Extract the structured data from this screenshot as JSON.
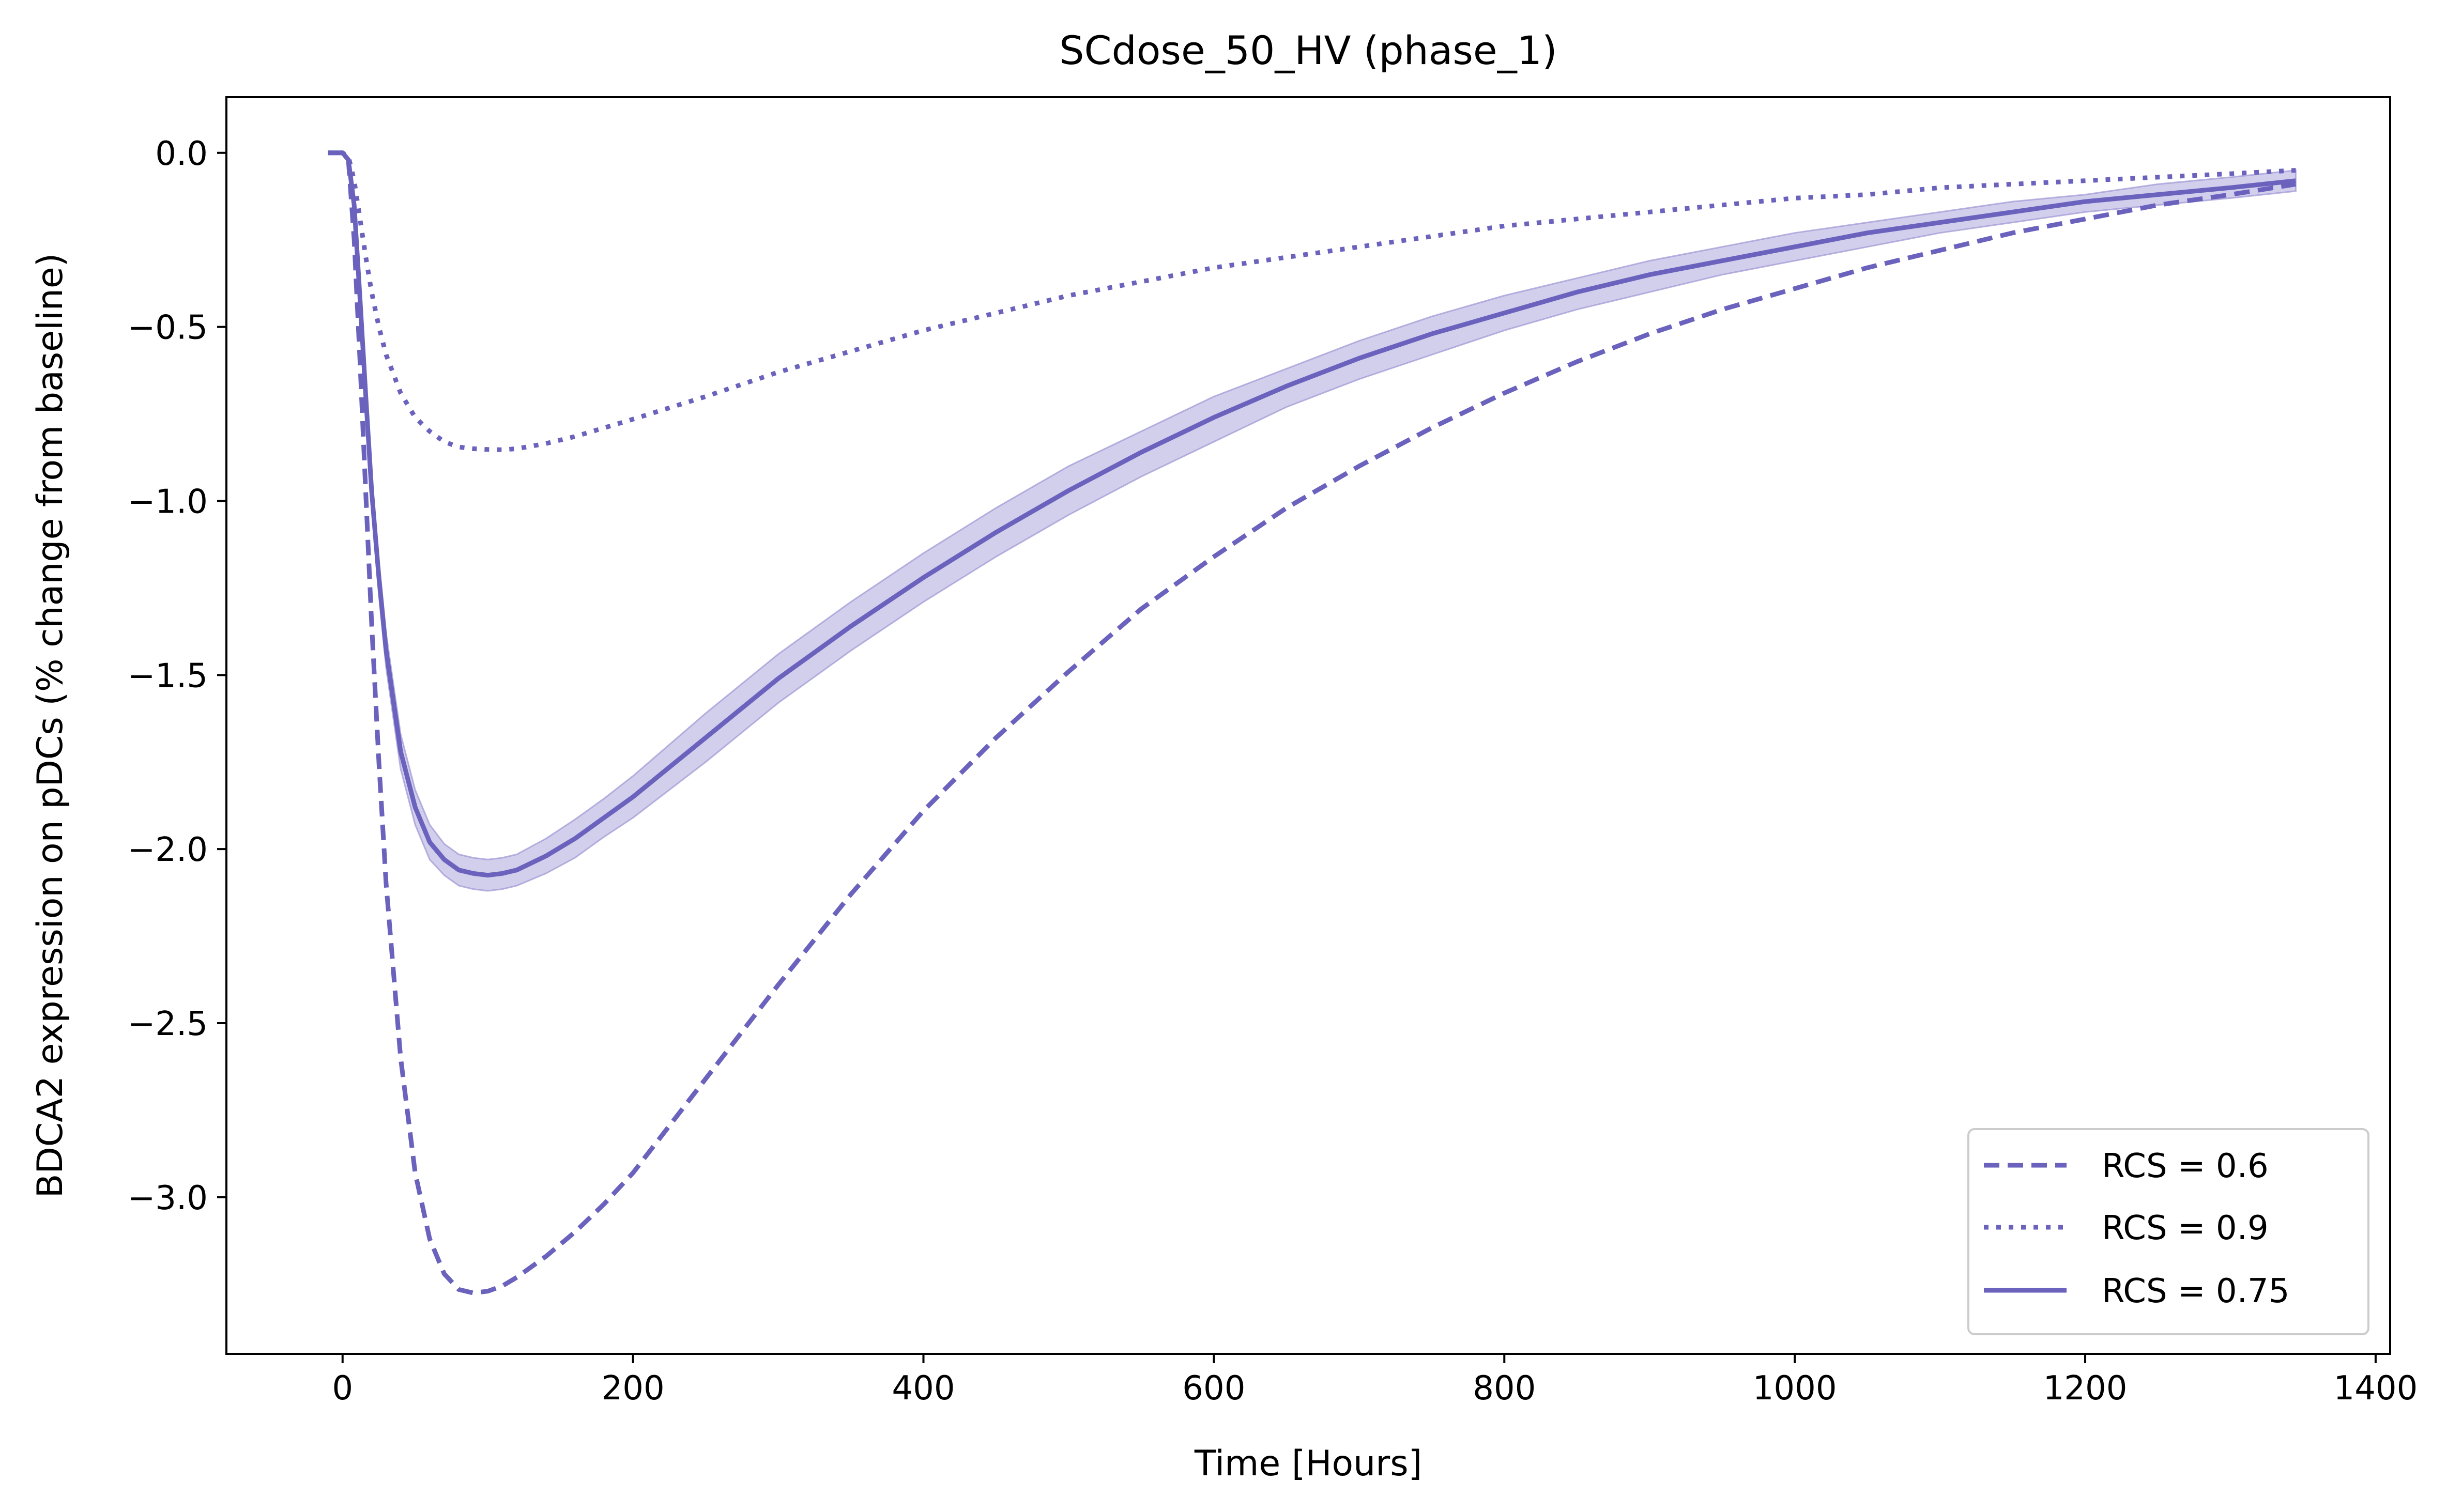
{
  "chart_data": {
    "type": "line",
    "title": "SCdose_50_HV (phase_1)",
    "xlabel": "Time [Hours]",
    "ylabel": "BDCA2 expression on pDCs (% change from baseline)",
    "xlim": [
      -80,
      1410
    ],
    "ylim": [
      -3.45,
      0.16
    ],
    "xticks": [
      0,
      200,
      400,
      600,
      800,
      1000,
      1200,
      1400
    ],
    "xtick_labels": [
      "0",
      "200",
      "400",
      "600",
      "800",
      "1000",
      "1200",
      "1400"
    ],
    "yticks": [
      0.0,
      -0.5,
      -1.0,
      -1.5,
      -2.0,
      -2.5,
      -3.0
    ],
    "ytick_labels": [
      "0.0",
      "−0.5",
      "−1.0",
      "−1.5",
      "−2.0",
      "−2.5",
      "−3.0"
    ],
    "grid": false,
    "legend_position": "bottom-right",
    "color": "#6a62bd",
    "band_color": "#9c94d4",
    "x": [
      -10,
      0,
      4,
      8,
      12,
      16,
      20,
      25,
      30,
      40,
      50,
      60,
      70,
      80,
      90,
      100,
      110,
      120,
      140,
      160,
      180,
      200,
      250,
      300,
      350,
      400,
      450,
      500,
      550,
      600,
      650,
      700,
      750,
      800,
      850,
      900,
      950,
      1000,
      1050,
      1100,
      1150,
      1200,
      1250,
      1300,
      1345
    ],
    "series": [
      {
        "name": "RCS = 0.6",
        "style": "dashed",
        "values": [
          0,
          0,
          -0.02,
          -0.25,
          -0.6,
          -0.98,
          -1.35,
          -1.75,
          -2.1,
          -2.6,
          -2.93,
          -3.12,
          -3.22,
          -3.265,
          -3.275,
          -3.27,
          -3.255,
          -3.23,
          -3.17,
          -3.1,
          -3.02,
          -2.93,
          -2.66,
          -2.39,
          -2.13,
          -1.89,
          -1.68,
          -1.49,
          -1.31,
          -1.16,
          -1.02,
          -0.9,
          -0.79,
          -0.69,
          -0.6,
          -0.52,
          -0.45,
          -0.39,
          -0.33,
          -0.28,
          -0.23,
          -0.19,
          -0.15,
          -0.12,
          -0.09
        ]
      },
      {
        "name": "RCS = 0.9",
        "style": "dotted",
        "values": [
          0,
          0,
          -0.01,
          -0.08,
          -0.19,
          -0.3,
          -0.4,
          -0.5,
          -0.58,
          -0.69,
          -0.76,
          -0.8,
          -0.83,
          -0.845,
          -0.85,
          -0.852,
          -0.853,
          -0.85,
          -0.835,
          -0.815,
          -0.79,
          -0.765,
          -0.7,
          -0.63,
          -0.57,
          -0.51,
          -0.46,
          -0.41,
          -0.37,
          -0.33,
          -0.3,
          -0.27,
          -0.24,
          -0.21,
          -0.19,
          -0.17,
          -0.15,
          -0.13,
          -0.12,
          -0.1,
          -0.09,
          -0.08,
          -0.07,
          -0.06,
          -0.05
        ]
      },
      {
        "name": "RCS = 0.75",
        "style": "solid",
        "values": [
          0,
          0,
          -0.02,
          -0.15,
          -0.42,
          -0.7,
          -0.97,
          -1.22,
          -1.43,
          -1.72,
          -1.88,
          -1.98,
          -2.03,
          -2.06,
          -2.07,
          -2.075,
          -2.07,
          -2.06,
          -2.02,
          -1.97,
          -1.91,
          -1.85,
          -1.68,
          -1.51,
          -1.36,
          -1.22,
          -1.09,
          -0.97,
          -0.86,
          -0.76,
          -0.67,
          -0.59,
          -0.52,
          -0.46,
          -0.4,
          -0.35,
          -0.31,
          -0.27,
          -0.23,
          -0.2,
          -0.17,
          -0.14,
          -0.12,
          -0.1,
          -0.08
        ],
        "band_upper": [
          0,
          0,
          -0.02,
          -0.14,
          -0.4,
          -0.67,
          -0.93,
          -1.17,
          -1.38,
          -1.67,
          -1.83,
          -1.93,
          -1.985,
          -2.015,
          -2.025,
          -2.03,
          -2.025,
          -2.015,
          -1.97,
          -1.915,
          -1.855,
          -1.79,
          -1.61,
          -1.44,
          -1.29,
          -1.15,
          -1.02,
          -0.9,
          -0.8,
          -0.7,
          -0.62,
          -0.54,
          -0.47,
          -0.41,
          -0.36,
          -0.31,
          -0.27,
          -0.23,
          -0.2,
          -0.17,
          -0.14,
          -0.12,
          -0.09,
          -0.07,
          -0.05
        ],
        "band_lower": [
          0,
          0,
          -0.02,
          -0.16,
          -0.44,
          -0.73,
          -1.01,
          -1.27,
          -1.48,
          -1.77,
          -1.93,
          -2.03,
          -2.075,
          -2.105,
          -2.115,
          -2.12,
          -2.115,
          -2.105,
          -2.07,
          -2.025,
          -1.965,
          -1.91,
          -1.75,
          -1.58,
          -1.43,
          -1.29,
          -1.16,
          -1.04,
          -0.93,
          -0.83,
          -0.73,
          -0.65,
          -0.58,
          -0.51,
          -0.45,
          -0.4,
          -0.35,
          -0.31,
          -0.27,
          -0.23,
          -0.2,
          -0.17,
          -0.15,
          -0.13,
          -0.11
        ]
      }
    ]
  }
}
